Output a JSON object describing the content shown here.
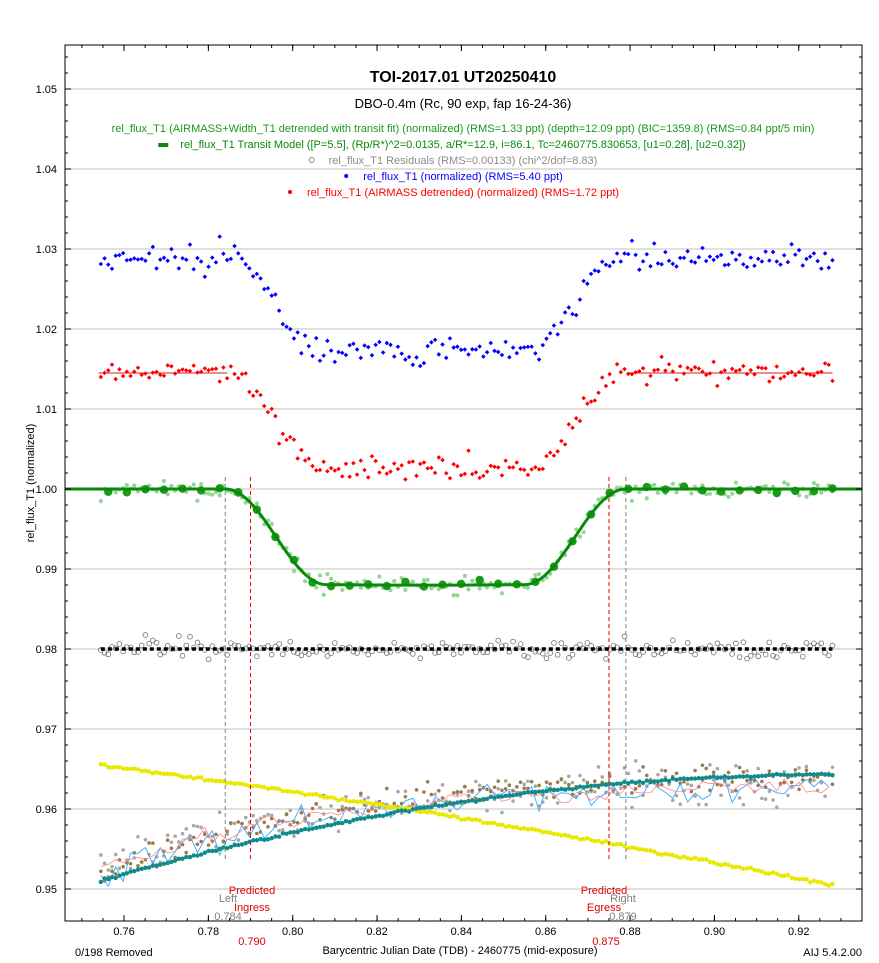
{
  "chart_data": {
    "type": "scatter",
    "title": "TOI-2017.01  UT20250410",
    "subtitle": "DBO-0.4m (Rc, 90 exp, fap 16-24-36)",
    "xlabel": "Barycentric Julian Date (TDB) - 2460775 (mid-exposure)",
    "ylabel": "rel_flux_T1 (normalized)",
    "xlim": [
      0.746,
      0.935
    ],
    "ylim": [
      0.946,
      1.0555
    ],
    "grid": "horizontal",
    "x_ticks": [
      "0.76",
      "0.78",
      "0.80",
      "0.82",
      "0.84",
      "0.86",
      "0.88",
      "0.90",
      "0.92"
    ],
    "y_ticks": [
      "0.95",
      "0.96",
      "0.97",
      "0.98",
      "0.99",
      "1.00",
      "1.01",
      "1.02",
      "1.03",
      "1.04",
      "1.05"
    ],
    "legend": [
      {
        "text": "rel_flux_T1 (AIRMASS+Width_T1 detrended with transit fit) (normalized) (RMS=1.33 ppt) (depth=12.09 ppt) (BIC=1359.8) (RMS=0.84 ppt/5 min)",
        "color": "#1a9a1a",
        "marker": "none"
      },
      {
        "text": "rel_flux_T1 Transit Model ([P=5.5], (Rp/R*)^2=0.0135, a/R*=12.9, i=86.1, Tc=2460775.830653, [u1=0.28], [u2=0.32])",
        "color": "#0a8a0a",
        "marker": "line"
      },
      {
        "text": "rel_flux_T1 Residuals (RMS=0.00133) (chi^2/dof=8.83)",
        "color": "#8c8c8c",
        "marker": "circle"
      },
      {
        "text": "rel_flux_T1 (normalized) (RMS=5.40 ppt)",
        "color": "#0000ff",
        "marker": "dot"
      },
      {
        "text": "rel_flux_T1 (AIRMASS detrended) (normalized) (RMS=1.72 ppt)",
        "color": "#ff0000",
        "marker": "dot"
      }
    ],
    "transit_model": {
      "t1": 0.784,
      "t2": 0.7945,
      "t3": 0.8675,
      "t4": 0.879,
      "depth": 0.0122,
      "baseline": 1.0
    },
    "series": [
      {
        "name": "rel_flux_T1 (normalized)",
        "color": "#0000ff",
        "offset": 1.0285,
        "depth": 0.012
      },
      {
        "name": "rel_flux_T1 (AIRMASS detrended)",
        "color": "#ff0000",
        "offset": 1.0145,
        "depth": 0.012
      },
      {
        "name": "rel_flux_T1 (AIRMASS+Width_T1 detrended with transit fit)",
        "color": "#1a9a1a",
        "offset": 1.0,
        "depth": 0.012
      },
      {
        "name": "rel_flux_T1 Residuals",
        "color": "#707070",
        "offset": 0.98,
        "depth": 0
      }
    ],
    "baseline_segments": [
      {
        "x": [
          0.754,
          0.7845
        ],
        "y": 1.0145,
        "color": "#cc2222"
      },
      {
        "x": [
          0.8795,
          0.928
        ],
        "y": 1.0145,
        "color": "#cc2222"
      }
    ],
    "x_range": [
      0.7545,
      0.928
    ],
    "markers": [
      {
        "label_top": "Left",
        "label_bottom": "0.784",
        "x": 0.784,
        "color": "#808080"
      },
      {
        "label_top": "Predicted Ingress",
        "label_bottom": "0.790",
        "x": 0.79,
        "color": "#e00000"
      },
      {
        "label_top": "Predicted Egress",
        "label_bottom": "0.875",
        "x": 0.875,
        "color": "#e00000"
      },
      {
        "label_top": "Right",
        "label_bottom": "0.879",
        "x": 0.879,
        "color": "#808080"
      }
    ],
    "aux_series": [
      {
        "name": "yellow",
        "color": "#e8e800",
        "start": 0.9655,
        "end": 0.9505
      },
      {
        "name": "teal",
        "color": "#108a8a",
        "start": 0.951,
        "end": 0.965
      },
      {
        "name": "brown",
        "color": "#a0784a"
      },
      {
        "name": "gray",
        "color": "#a8a8a8"
      },
      {
        "name": "blue-line",
        "color": "#33aaff"
      },
      {
        "name": "pink-line",
        "color": "#ff8888"
      }
    ]
  },
  "footer": {
    "removed": "0/198 Removed",
    "version": "AIJ 5.4.2.00"
  },
  "marker_labels": {
    "left_top": "Left",
    "left_bottom": "0.784",
    "ingress_top": "Predicted",
    "ingress_mid": "Ingress",
    "ingress_bottom": "0.790",
    "egress_top": "Predicted",
    "egress_mid": "Egress",
    "egress_bottom": "0.875",
    "right_top": "Right",
    "right_bottom": "0.879"
  }
}
